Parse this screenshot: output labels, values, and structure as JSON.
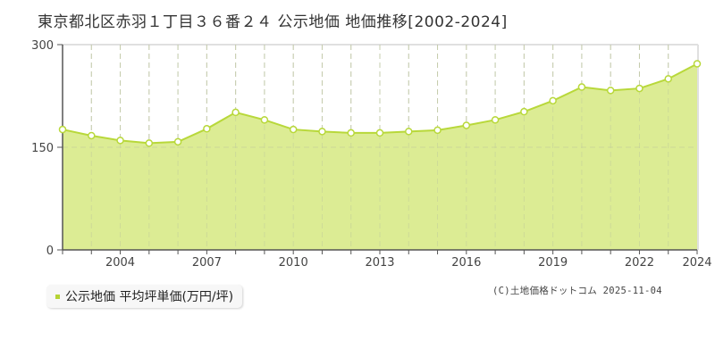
{
  "title": "東京都北区赤羽１丁目３６番２４ 公示地価 地価推移[2002-2024]",
  "legend": {
    "label": "公示地価 平均坪単価(万円/坪)",
    "color": "#b5d334"
  },
  "credit": "(C)土地価格ドットコム 2025-11-04",
  "colors": {
    "fill": "#dcec94",
    "line": "#b8d83a",
    "grid": "#c8c8c8",
    "axis": "#555555",
    "frame": "#e0e0e0"
  },
  "chart_data": {
    "type": "area",
    "title": "東京都北区赤羽１丁目３６番２４ 公示地価 地価推移[2002-2024]",
    "xlabel": "",
    "ylabel": "",
    "series": [
      {
        "name": "公示地価 平均坪単価(万円/坪)",
        "x": [
          2002,
          2003,
          2004,
          2005,
          2006,
          2007,
          2008,
          2009,
          2010,
          2011,
          2012,
          2013,
          2014,
          2015,
          2016,
          2017,
          2018,
          2019,
          2020,
          2021,
          2022,
          2023,
          2024
        ],
        "values": [
          176,
          167,
          160,
          156,
          158,
          177,
          201,
          190,
          176,
          173,
          171,
          171,
          173,
          175,
          182,
          190,
          202,
          218,
          238,
          233,
          236,
          250,
          272
        ]
      }
    ],
    "xlim": [
      2002,
      2024
    ],
    "ylim": [
      0,
      300
    ],
    "yticks": [
      "0",
      "150",
      "300"
    ],
    "xticks": [
      "2004",
      "2007",
      "2010",
      "2013",
      "2016",
      "2019",
      "2022",
      "2024"
    ],
    "grid": true,
    "legend_position": "bottom-left"
  }
}
